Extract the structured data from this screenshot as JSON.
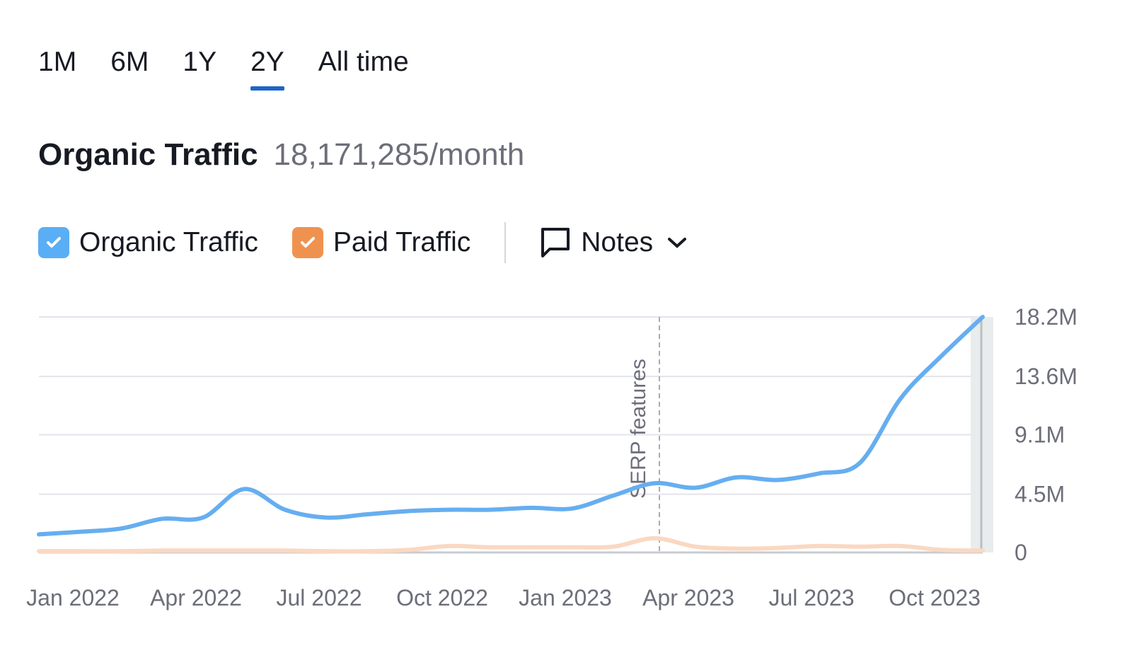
{
  "tabs": [
    {
      "label": "1M",
      "active": false
    },
    {
      "label": "6M",
      "active": false
    },
    {
      "label": "1Y",
      "active": false
    },
    {
      "label": "2Y",
      "active": true
    },
    {
      "label": "All time",
      "active": false
    }
  ],
  "header": {
    "title": "Organic Traffic",
    "value": "18,171,285/month"
  },
  "legend": {
    "organic": {
      "label": "Organic Traffic",
      "checked": true,
      "color": "#5aaef5"
    },
    "paid": {
      "label": "Paid Traffic",
      "checked": true,
      "color": "#f0924f"
    },
    "notes": {
      "label": "Notes",
      "icon": "comment-icon",
      "chevron": "chevron-down-icon"
    }
  },
  "colors": {
    "accent": "#1e64c8",
    "organic_line": "#66aef0",
    "paid_line": "#fad8c2"
  },
  "chart_data": {
    "type": "line",
    "x": [
      "Dec 2021",
      "Jan 2022",
      "Feb 2022",
      "Mar 2022",
      "Apr 2022",
      "May 2022",
      "Jun 2022",
      "Jul 2022",
      "Aug 2022",
      "Sep 2022",
      "Oct 2022",
      "Nov 2022",
      "Dec 2022",
      "Jan 2023",
      "Feb 2023",
      "Mar 2023",
      "Apr 2023",
      "May 2023",
      "Jun 2023",
      "Jul 2023",
      "Aug 2023",
      "Sep 2023",
      "Oct 2023",
      "Nov 2023"
    ],
    "xticks": [
      "Jan 2022",
      "Apr 2022",
      "Jul 2022",
      "Oct 2022",
      "Jan 2023",
      "Apr 2023",
      "Jul 2023",
      "Oct 2023"
    ],
    "series": [
      {
        "name": "Organic Traffic",
        "values": [
          1.4,
          1.6,
          1.85,
          2.6,
          2.7,
          4.9,
          3.3,
          2.7,
          2.95,
          3.2,
          3.3,
          3.3,
          3.45,
          3.4,
          4.4,
          5.35,
          5.0,
          5.8,
          5.6,
          6.1,
          6.9,
          11.9,
          15.2,
          18.2
        ]
      },
      {
        "name": "Paid Traffic",
        "values": [
          0.1,
          0.1,
          0.1,
          0.15,
          0.15,
          0.15,
          0.15,
          0.1,
          0.1,
          0.2,
          0.5,
          0.4,
          0.4,
          0.4,
          0.45,
          1.1,
          0.45,
          0.3,
          0.35,
          0.5,
          0.45,
          0.5,
          0.2,
          0.15
        ]
      }
    ],
    "yunit": "M",
    "yticks": [
      "0",
      "4.5M",
      "9.1M",
      "13.6M",
      "18.2M"
    ],
    "ytick_values": [
      0,
      4.5,
      9.1,
      13.6,
      18.2
    ],
    "ylim": [
      0,
      18.2
    ],
    "yaxis_side": "right",
    "grid": true,
    "annotations": [
      {
        "x": "Mar 2023",
        "label": "SERP features",
        "style": "dashed-vertical"
      }
    ],
    "highlight": "Nov 2023"
  }
}
